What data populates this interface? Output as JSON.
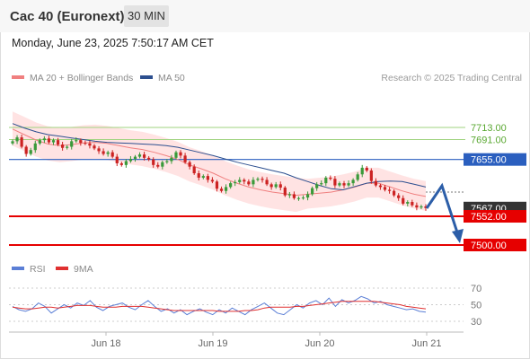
{
  "header": {
    "title": "Cac 40 (Euronext)",
    "timeframe": "30 MIN"
  },
  "datetime": "Monday, June 23, 2025 7:50:17 AM CET",
  "colors": {
    "ma20": "#f08080",
    "band": "#ffdede",
    "ma50": "#2c4f8f",
    "bull": "#3a9a3a",
    "bear": "#cc2222",
    "resistance": "#9fd37f",
    "pivot": "#2b5fbf",
    "support": "#e60000",
    "rsi": "#5b7fd6",
    "rsi_ma": "#e03030",
    "arrow": "#2c5ea8",
    "last_price": "#333333"
  },
  "legend": [
    {
      "label": "MA 20 + Bollinger Bands",
      "color": "#f08080"
    },
    {
      "label": "MA 50",
      "color": "#2c4f8f"
    }
  ],
  "attribution": "Research © 2025 Trading Central",
  "levels": [
    {
      "label": "7713.00",
      "value": 7713,
      "role": "resistance"
    },
    {
      "label": "7691.00",
      "value": 7691,
      "role": "resistance"
    },
    {
      "label": "7655.00",
      "value": 7655,
      "role": "pivot"
    },
    {
      "label": "7567.00",
      "value": 7567,
      "role": "last"
    },
    {
      "label": "7552.00",
      "value": 7552,
      "role": "support"
    },
    {
      "label": "7500.00",
      "value": 7500,
      "role": "support"
    }
  ],
  "rsi_legend": [
    {
      "label": "RSI",
      "color": "#5b7fd6"
    },
    {
      "label": "9MA",
      "color": "#e03030"
    }
  ],
  "rsi_ticks": [
    "70",
    "50",
    "30"
  ],
  "x_ticks": [
    "Jun 18",
    "Jun 19",
    "Jun 20",
    "Jun 21"
  ],
  "chart_data": [
    {
      "type": "candlestick",
      "title": "Cac 40 (Euronext)",
      "ylim": [
        7480,
        7800
      ],
      "x_labels": [
        "Jun 18",
        "Jun 19",
        "Jun 20",
        "Jun 21"
      ],
      "close_trace": [
        7688,
        7695,
        7678,
        7665,
        7672,
        7684,
        7690,
        7693,
        7686,
        7690,
        7682,
        7676,
        7678,
        7688,
        7690,
        7685,
        7684,
        7680,
        7675,
        7670,
        7665,
        7668,
        7660,
        7648,
        7645,
        7652,
        7656,
        7660,
        7664,
        7658,
        7655,
        7645,
        7642,
        7650,
        7652,
        7658,
        7668,
        7662,
        7650,
        7642,
        7630,
        7622,
        7625,
        7618,
        7615,
        7602,
        7598,
        7605,
        7612,
        7614,
        7618,
        7615,
        7610,
        7618,
        7620,
        7618,
        7610,
        7605,
        7610,
        7604,
        7590,
        7592,
        7585,
        7585,
        7586,
        7592,
        7603,
        7610,
        7612,
        7622,
        7620,
        7608,
        7612,
        7608,
        7612,
        7618,
        7628,
        7640,
        7635,
        7616,
        7608,
        7605,
        7600,
        7598,
        7590,
        7585,
        7575,
        7578,
        7572,
        7568,
        7570,
        7567
      ],
      "series": [
        {
          "name": "MA 50",
          "values": [
            7720,
            7712,
            7705,
            7700,
            7697,
            7694,
            7691,
            7688,
            7686,
            7685,
            7684,
            7683,
            7682,
            7680,
            7677,
            7672,
            7667,
            7662,
            7656,
            7650,
            7645,
            7640,
            7635,
            7630,
            7622,
            7615,
            7608,
            7602,
            7600,
            7606,
            7612,
            7615,
            7616,
            7615,
            7610,
            7605
          ]
        },
        {
          "name": "MA 20",
          "values": [
            7710,
            7700,
            7690,
            7683,
            7680,
            7682,
            7685,
            7686,
            7684,
            7680,
            7676,
            7673,
            7668,
            7662,
            7655,
            7645,
            7638,
            7630,
            7620,
            7612,
            7605,
            7600,
            7596,
            7593,
            7590,
            7592,
            7594,
            7596,
            7600,
            7605,
            7612,
            7612,
            7605,
            7598,
            7592,
            7588
          ]
        },
        {
          "name": "RSI",
          "values": [
            48,
            44,
            42,
            45,
            52,
            48,
            40,
            45,
            50,
            46,
            52,
            49,
            55,
            47,
            43,
            48,
            50,
            52,
            47,
            44,
            50,
            55,
            48,
            42,
            45,
            40,
            44,
            38,
            42,
            45,
            41,
            38,
            44,
            40,
            46,
            42,
            38,
            44,
            48,
            52,
            46,
            40,
            38,
            44,
            50,
            46,
            52,
            55,
            50,
            58,
            48,
            56,
            52,
            55,
            60,
            57,
            52,
            54,
            50,
            48,
            46,
            44,
            45,
            42,
            41
          ]
        },
        {
          "name": "9MA",
          "values": [
            47,
            46,
            45,
            45,
            46,
            47,
            47,
            46,
            47,
            48,
            49,
            49,
            49,
            48,
            47,
            47,
            47,
            48,
            48,
            48,
            48,
            47,
            46,
            45,
            44,
            43,
            43,
            43,
            43,
            43,
            43,
            43,
            42,
            42,
            42,
            42,
            43,
            43,
            44,
            46,
            47,
            47,
            47,
            47,
            48,
            48,
            49,
            50,
            51,
            52,
            53,
            54,
            54,
            54,
            54,
            54,
            54,
            53,
            52,
            51,
            50,
            48,
            47,
            46,
            45
          ]
        }
      ]
    }
  ]
}
